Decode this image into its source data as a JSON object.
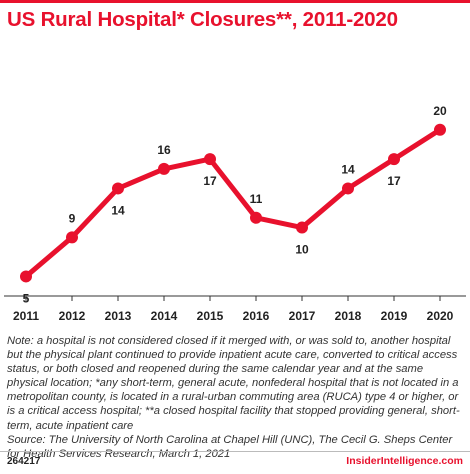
{
  "title": "US Rural Hospital* Closures**, 2011-2020",
  "chart_data": {
    "type": "line",
    "x": [
      "2011",
      "2012",
      "2013",
      "2014",
      "2015",
      "2016",
      "2017",
      "2018",
      "2019",
      "2020"
    ],
    "values": [
      5,
      9,
      14,
      16,
      17,
      11,
      10,
      14,
      17,
      20
    ],
    "data_labels": [
      "5",
      "9",
      "14",
      "16",
      "17",
      "11",
      "10",
      "14",
      "17",
      "20"
    ],
    "ylim": [
      3,
      21
    ],
    "grid": false,
    "line_color": "#e8112d"
  },
  "note": {
    "text": "Note: a hospital is not considered closed if it merged with, or was sold to, another hospital but the physical plant continued to provide inpatient acute care, converted to critical access status, or both closed and reopened during the same calendar year and at the same physical location; *any short-term, general acute, nonfederal hospital that is not located in a metropolitan county, is located in a rural-urban commuting area (RUCA) type 4 or higher, or is a critical access hospital; **a closed hospital facility that stopped providing general, short-term, acute inpatient care",
    "source": "Source: The University of North Carolina at Chapel Hill (UNC), The Cecil G. Sheps Center for Health Services Research, March 1, 2021"
  },
  "footer": {
    "chart_id": "264217",
    "brand": "InsiderIntelligence.com"
  }
}
